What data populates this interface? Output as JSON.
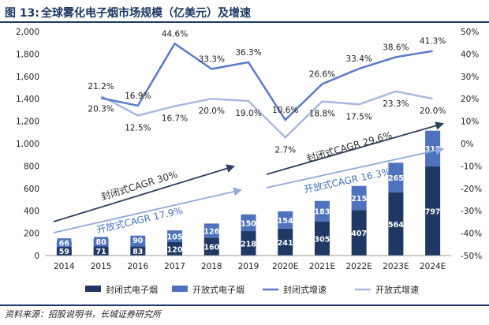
{
  "figure": {
    "label": "图 13:",
    "title": "全球雾化电子烟市场规模（亿美元）及增速",
    "source": "资料来源：招股说明书，长城证券研究所"
  },
  "colors": {
    "closed_bar": "#1f3864",
    "open_bar": "#4f72be",
    "closed_line": "#5b7bc9",
    "open_line": "#aab9e2",
    "arrow_closed": "#2f3f5f",
    "arrow_open": "#8faadc",
    "label_closed_bg": "#1f3864",
    "label_open_bg": "#4f72be"
  },
  "chart_data": {
    "type": "bar",
    "stacked": true,
    "categories": [
      "2014",
      "2015",
      "2016",
      "2017",
      "2018",
      "2019",
      "2020E",
      "2021E",
      "2022E",
      "2023E",
      "2024E"
    ],
    "series": [
      {
        "name": "封闭式电子烟",
        "type": "bar",
        "axis": "left",
        "values": [
          59,
          71,
          83,
          120,
          160,
          218,
          241,
          305,
          407,
          564,
          797
        ]
      },
      {
        "name": "开放式电子烟",
        "type": "bar",
        "axis": "left",
        "values": [
          66,
          80,
          90,
          105,
          126,
          150,
          154,
          183,
          215,
          265,
          318
        ]
      },
      {
        "name": "封闭式增速",
        "type": "line",
        "axis": "right",
        "values": [
          null,
          20.3,
          16.9,
          44.6,
          33.3,
          36.3,
          10.6,
          26.6,
          33.4,
          38.6,
          41.3
        ]
      },
      {
        "name": "开放式增速",
        "type": "line",
        "axis": "right",
        "values": [
          null,
          21.2,
          12.5,
          16.7,
          20.0,
          19.0,
          2.7,
          18.8,
          17.5,
          23.3,
          20.0
        ]
      }
    ],
    "labels": {
      "closed_growth": [
        "",
        "20.3%",
        "16.9%",
        "44.6%",
        "33.3%",
        "36.3%",
        "10.6%",
        "26.6%",
        "33.4%",
        "38.6%",
        "41.3%"
      ],
      "open_growth": [
        "",
        "21.2%",
        "12.5%",
        "16.7%",
        "20.0%",
        "19.0%",
        "2.7%",
        "18.8%",
        "17.5%",
        "23.3%",
        "20.0%"
      ]
    },
    "y_left": {
      "min": 0,
      "max": 2000,
      "ticks": [
        "0",
        "200",
        "400",
        "600",
        "800",
        "1,000",
        "1,200",
        "1,400",
        "1,600",
        "1,800",
        "2,000"
      ]
    },
    "y_right": {
      "min": -50,
      "max": 50,
      "ticks": [
        "-50%",
        "-40%",
        "-30%",
        "-20%",
        "-10%",
        "0%",
        "10%",
        "20%",
        "30%",
        "40%",
        "50%"
      ]
    },
    "annotations": [
      {
        "text": "封闭式CAGR 30%",
        "group": "closed",
        "period": "2014-2019"
      },
      {
        "text": "开放式CAGR 17.9%",
        "group": "open",
        "period": "2014-2019"
      },
      {
        "text": "封闭式CAGR 29.6%",
        "group": "closed",
        "period": "2020E-2024E"
      },
      {
        "text": "开放式CAGR 16.3%",
        "group": "open",
        "period": "2020E-2024E"
      }
    ],
    "legend": {
      "position": "bottom",
      "items": [
        "封闭式电子烟",
        "开放式电子烟",
        "封闭式增速",
        "开放式增速"
      ]
    }
  }
}
